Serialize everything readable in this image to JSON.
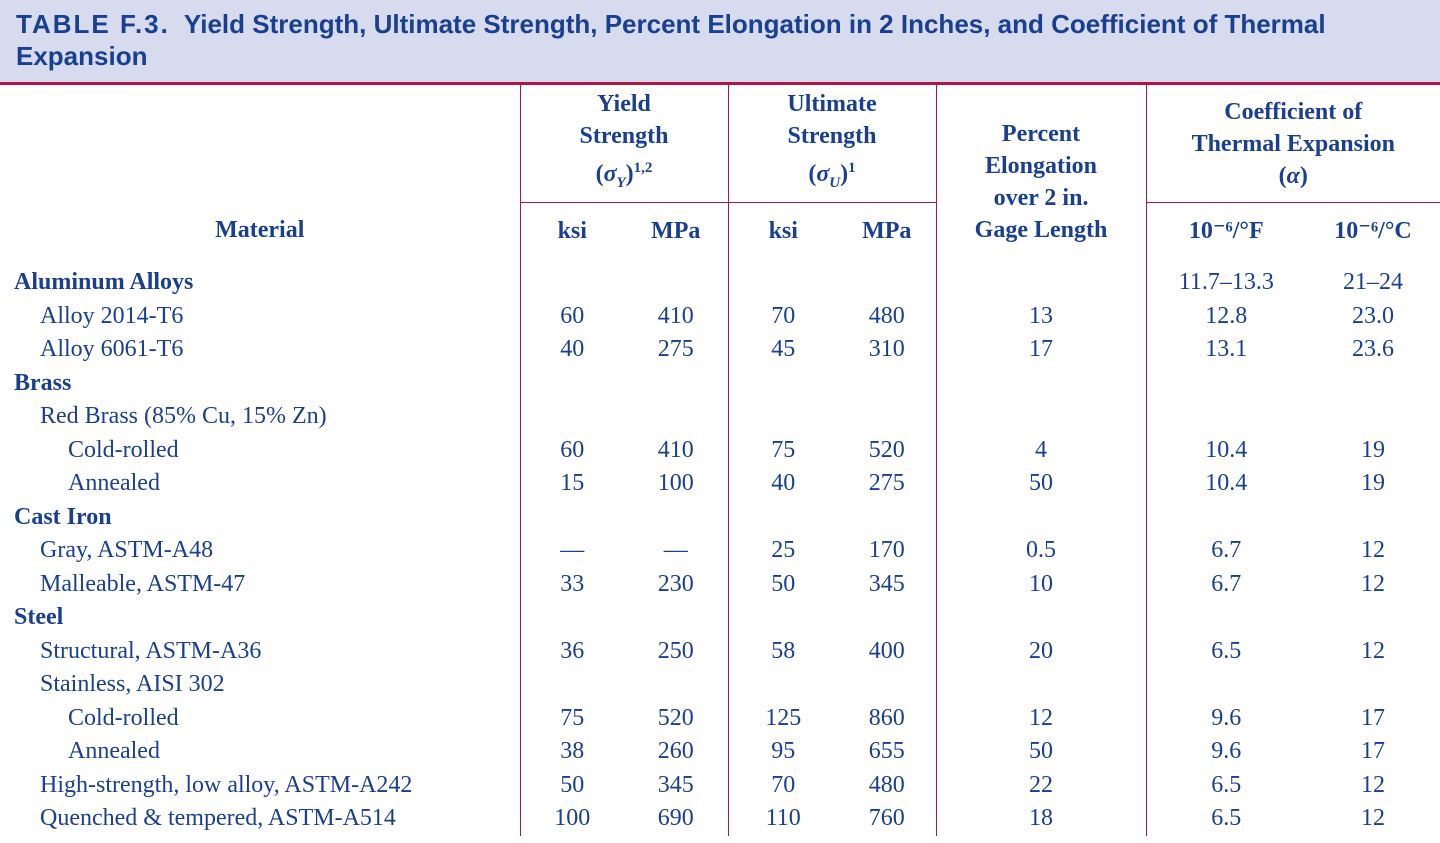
{
  "title": {
    "number": "TABLE F.3.",
    "text": "Yield Strength, Ultimate Strength, Percent Elongation in 2 Inches, and Coefficient of Thermal Expansion"
  },
  "headers": {
    "material": "Material",
    "yield_line1": "Yield",
    "yield_line2": "Strength",
    "yield_sym": "σ",
    "yield_sub": "Y",
    "yield_sup": "1,2",
    "ult_line1": "Ultimate",
    "ult_line2": "Strength",
    "ult_sym": "σ",
    "ult_sub": "U",
    "ult_sup": "1",
    "pe_line1": "Percent",
    "pe_line2": "Elongation",
    "pe_line3": "over 2 in.",
    "pe_line4": "Gage Length",
    "cte_line1": "Coefficient of",
    "cte_line2": "Thermal Expansion",
    "cte_sym": "α",
    "ksi": "ksi",
    "mpa": "MPa",
    "ksi2": "ksi",
    "mpa2": "MPa",
    "cte_f": "10⁻⁶/°F",
    "cte_c": "10⁻⁶/°C"
  },
  "rows": [
    {
      "material": "Aluminum Alloys",
      "level": 0,
      "ys_ksi": "",
      "ys_mpa": "",
      "us_ksi": "",
      "us_mpa": "",
      "elong": "",
      "cte_f": "11.7–13.3",
      "cte_c": "21–24"
    },
    {
      "material": "Alloy 2014-T6",
      "level": 1,
      "ys_ksi": "60",
      "ys_mpa": "410",
      "us_ksi": "70",
      "us_mpa": "480",
      "elong": "13",
      "cte_f": "12.8",
      "cte_c": "23.0"
    },
    {
      "material": "Alloy 6061-T6",
      "level": 1,
      "ys_ksi": "40",
      "ys_mpa": "275",
      "us_ksi": "45",
      "us_mpa": "310",
      "elong": "17",
      "cte_f": "13.1",
      "cte_c": "23.6"
    },
    {
      "material": "Brass",
      "level": 0,
      "ys_ksi": "",
      "ys_mpa": "",
      "us_ksi": "",
      "us_mpa": "",
      "elong": "",
      "cte_f": "",
      "cte_c": ""
    },
    {
      "material": "Red Brass (85% Cu, 15% Zn)",
      "level": 1,
      "ys_ksi": "",
      "ys_mpa": "",
      "us_ksi": "",
      "us_mpa": "",
      "elong": "",
      "cte_f": "",
      "cte_c": ""
    },
    {
      "material": "Cold-rolled",
      "level": 2,
      "ys_ksi": "60",
      "ys_mpa": "410",
      "us_ksi": "75",
      "us_mpa": "520",
      "elong": "4",
      "cte_f": "10.4",
      "cte_c": "19"
    },
    {
      "material": "Annealed",
      "level": 2,
      "ys_ksi": "15",
      "ys_mpa": "100",
      "us_ksi": "40",
      "us_mpa": "275",
      "elong": "50",
      "cte_f": "10.4",
      "cte_c": "19"
    },
    {
      "material": "Cast Iron",
      "level": 0,
      "ys_ksi": "",
      "ys_mpa": "",
      "us_ksi": "",
      "us_mpa": "",
      "elong": "",
      "cte_f": "",
      "cte_c": ""
    },
    {
      "material": "Gray, ASTM-A48",
      "level": 1,
      "ys_ksi": "—",
      "ys_mpa": "—",
      "us_ksi": "25",
      "us_mpa": "170",
      "elong": "0.5",
      "cte_f": "6.7",
      "cte_c": "12"
    },
    {
      "material": "Malleable, ASTM-47",
      "level": 1,
      "ys_ksi": "33",
      "ys_mpa": "230",
      "us_ksi": "50",
      "us_mpa": "345",
      "elong": "10",
      "cte_f": "6.7",
      "cte_c": "12"
    },
    {
      "material": "Steel",
      "level": 0,
      "ys_ksi": "",
      "ys_mpa": "",
      "us_ksi": "",
      "us_mpa": "",
      "elong": "",
      "cte_f": "",
      "cte_c": ""
    },
    {
      "material": "Structural, ASTM-A36",
      "level": 1,
      "ys_ksi": "36",
      "ys_mpa": "250",
      "us_ksi": "58",
      "us_mpa": "400",
      "elong": "20",
      "cte_f": "6.5",
      "cte_c": "12"
    },
    {
      "material": "Stainless, AISI 302",
      "level": 1,
      "ys_ksi": "",
      "ys_mpa": "",
      "us_ksi": "",
      "us_mpa": "",
      "elong": "",
      "cte_f": "",
      "cte_c": ""
    },
    {
      "material": "Cold-rolled",
      "level": 2,
      "ys_ksi": "75",
      "ys_mpa": "520",
      "us_ksi": "125",
      "us_mpa": "860",
      "elong": "12",
      "cte_f": "9.6",
      "cte_c": "17"
    },
    {
      "material": "Annealed",
      "level": 2,
      "ys_ksi": "38",
      "ys_mpa": "260",
      "us_ksi": "95",
      "us_mpa": "655",
      "elong": "50",
      "cte_f": "9.6",
      "cte_c": "17"
    },
    {
      "material": "High-strength, low alloy, ASTM-A242",
      "level": 1,
      "ys_ksi": "50",
      "ys_mpa": "345",
      "us_ksi": "70",
      "us_mpa": "480",
      "elong": "22",
      "cte_f": "6.5",
      "cte_c": "12"
    },
    {
      "material": "Quenched & tempered, ASTM-A514",
      "level": 1,
      "ys_ksi": "100",
      "ys_mpa": "690",
      "us_ksi": "110",
      "us_mpa": "760",
      "elong": "18",
      "cte_f": "6.5",
      "cte_c": "12"
    }
  ]
}
